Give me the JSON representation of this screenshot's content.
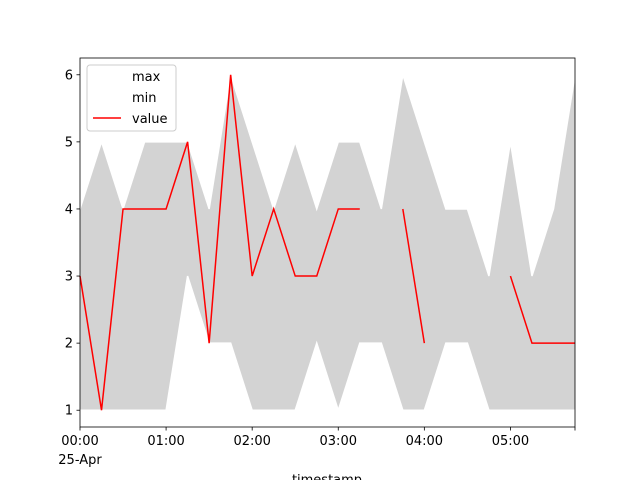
{
  "chart_data": {
    "type": "line",
    "x": [
      "00:00",
      "00:15",
      "00:30",
      "00:45",
      "01:00",
      "01:15",
      "01:30",
      "01:45",
      "02:00",
      "02:15",
      "02:30",
      "02:45",
      "03:00",
      "03:15",
      "03:30",
      "03:45",
      "04:00",
      "04:15",
      "04:30",
      "04:45",
      "05:00",
      "05:15",
      "05:30",
      "05:45"
    ],
    "series": [
      {
        "name": "max",
        "color": "white",
        "values": [
          4,
          5,
          4,
          5,
          5,
          5,
          4,
          6,
          5,
          4,
          5,
          4,
          5,
          5,
          4,
          6,
          5,
          4,
          4,
          3,
          5,
          3,
          4,
          6
        ]
      },
      {
        "name": "min",
        "color": "white",
        "values": [
          1,
          1,
          1,
          1,
          1,
          3,
          2,
          2,
          1,
          1,
          1,
          2,
          1,
          2,
          2,
          1,
          1,
          2,
          2,
          1,
          1,
          1,
          1,
          1
        ]
      },
      {
        "name": "value",
        "color": "red",
        "values": [
          3,
          1,
          4,
          4,
          4,
          5,
          2,
          6,
          3,
          4,
          3,
          3,
          4,
          4,
          null,
          4,
          2,
          null,
          null,
          null,
          3,
          2,
          2,
          2
        ]
      }
    ],
    "fill_color": "#d3d3d3",
    "xlim": [
      "00:00",
      "05:45"
    ],
    "xticks": [
      "00:00",
      "01:00",
      "02:00",
      "03:00",
      "04:00",
      "05:00"
    ],
    "xtick_date": "25-Apr",
    "xlabel": "timestamp",
    "ylim": [
      0.75,
      6.25
    ],
    "yticks": [
      1,
      2,
      3,
      4,
      5,
      6
    ],
    "legend": "upper left"
  }
}
